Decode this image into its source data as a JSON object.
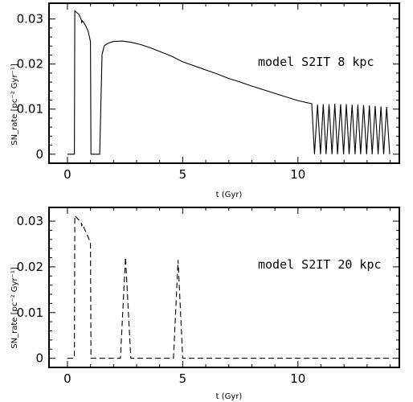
{
  "chart_data": [
    {
      "type": "line",
      "annotation": "model S2IT 8 kpc",
      "xlabel": "t (Gyr)",
      "ylabel": "SN_rate [pc⁻² Gyr⁻¹]",
      "xlim": [
        -0.8,
        14.4
      ],
      "ylim": [
        -0.002,
        0.0335
      ],
      "xticks": [
        0,
        5,
        10
      ],
      "yticks": [
        0,
        0.01,
        0.02,
        0.03
      ],
      "xtick_labels": [
        "0",
        "5",
        "10"
      ],
      "ytick_labels": [
        "0",
        "0.01",
        "0.02",
        "0.03"
      ],
      "line_style": "solid",
      "series": [
        {
          "x": [
            0.0,
            0.3,
            0.32,
            0.5,
            0.6,
            0.62,
            0.64,
            0.7,
            0.8,
            0.9,
            1.0,
            1.02,
            1.1,
            1.4,
            1.5,
            1.6,
            1.8,
            2.0,
            2.4,
            2.8,
            3.2,
            3.6,
            4.0,
            4.5,
            5.0,
            5.5,
            6.0,
            6.5,
            7.0,
            7.5,
            8.0,
            8.5,
            9.0,
            9.5,
            10.0,
            10.5,
            10.6,
            10.72,
            10.85,
            10.98,
            11.1,
            11.22,
            11.35,
            11.48,
            11.6,
            11.72,
            11.85,
            11.98,
            12.1,
            12.22,
            12.35,
            12.48,
            12.6,
            12.72,
            12.85,
            12.98,
            13.1,
            13.22,
            13.35,
            13.48,
            13.6,
            13.72,
            13.85,
            13.98
          ],
          "y": [
            0,
            0,
            0.0318,
            0.031,
            0.0298,
            0.0291,
            0.0296,
            0.0293,
            0.0284,
            0.0272,
            0.025,
            0.0,
            0.0,
            0.0,
            0.0221,
            0.0241,
            0.0247,
            0.025,
            0.0251,
            0.0248,
            0.0243,
            0.0236,
            0.0228,
            0.0218,
            0.0205,
            0.0196,
            0.0187,
            0.0178,
            0.0168,
            0.016,
            0.0151,
            0.0143,
            0.0135,
            0.0127,
            0.0119,
            0.0113,
            0.0112,
            0.0,
            0.011,
            0.0,
            0.0111,
            0.0,
            0.0111,
            0.0,
            0.0112,
            0.0,
            0.0111,
            0.0,
            0.0111,
            0.0,
            0.011,
            0.0,
            0.011,
            0.0,
            0.0109,
            0.0,
            0.0108,
            0.0,
            0.0107,
            0.0,
            0.0106,
            0.0,
            0.0105,
            0.0
          ]
        }
      ]
    },
    {
      "type": "line",
      "annotation": "model S2IT 20 kpc",
      "xlabel": "t (Gyr)",
      "ylabel": "SN_rate [pc⁻² Gyr⁻¹]",
      "xlim": [
        -0.8,
        14.4
      ],
      "ylim": [
        -0.002,
        0.033
      ],
      "xticks": [
        0,
        5,
        10
      ],
      "yticks": [
        0,
        0.01,
        0.02,
        0.03
      ],
      "xtick_labels": [
        "0",
        "5",
        "10"
      ],
      "ytick_labels": [
        "0",
        "0.01",
        "0.02",
        "0.03"
      ],
      "line_style": "dashed",
      "series": [
        {
          "x": [
            0.0,
            0.3,
            0.32,
            0.5,
            0.6,
            0.62,
            0.64,
            0.7,
            0.8,
            0.9,
            1.0,
            1.02,
            1.1,
            2.3,
            2.52,
            2.75,
            4.6,
            4.8,
            5.0,
            14.0
          ],
          "y": [
            0,
            0,
            0.0312,
            0.0302,
            0.0296,
            0.0289,
            0.0294,
            0.0288,
            0.0276,
            0.0265,
            0.0252,
            0.0,
            0.0,
            0.0,
            0.0221,
            0.0,
            0.0,
            0.0215,
            0.0,
            0.0
          ]
        }
      ]
    }
  ]
}
